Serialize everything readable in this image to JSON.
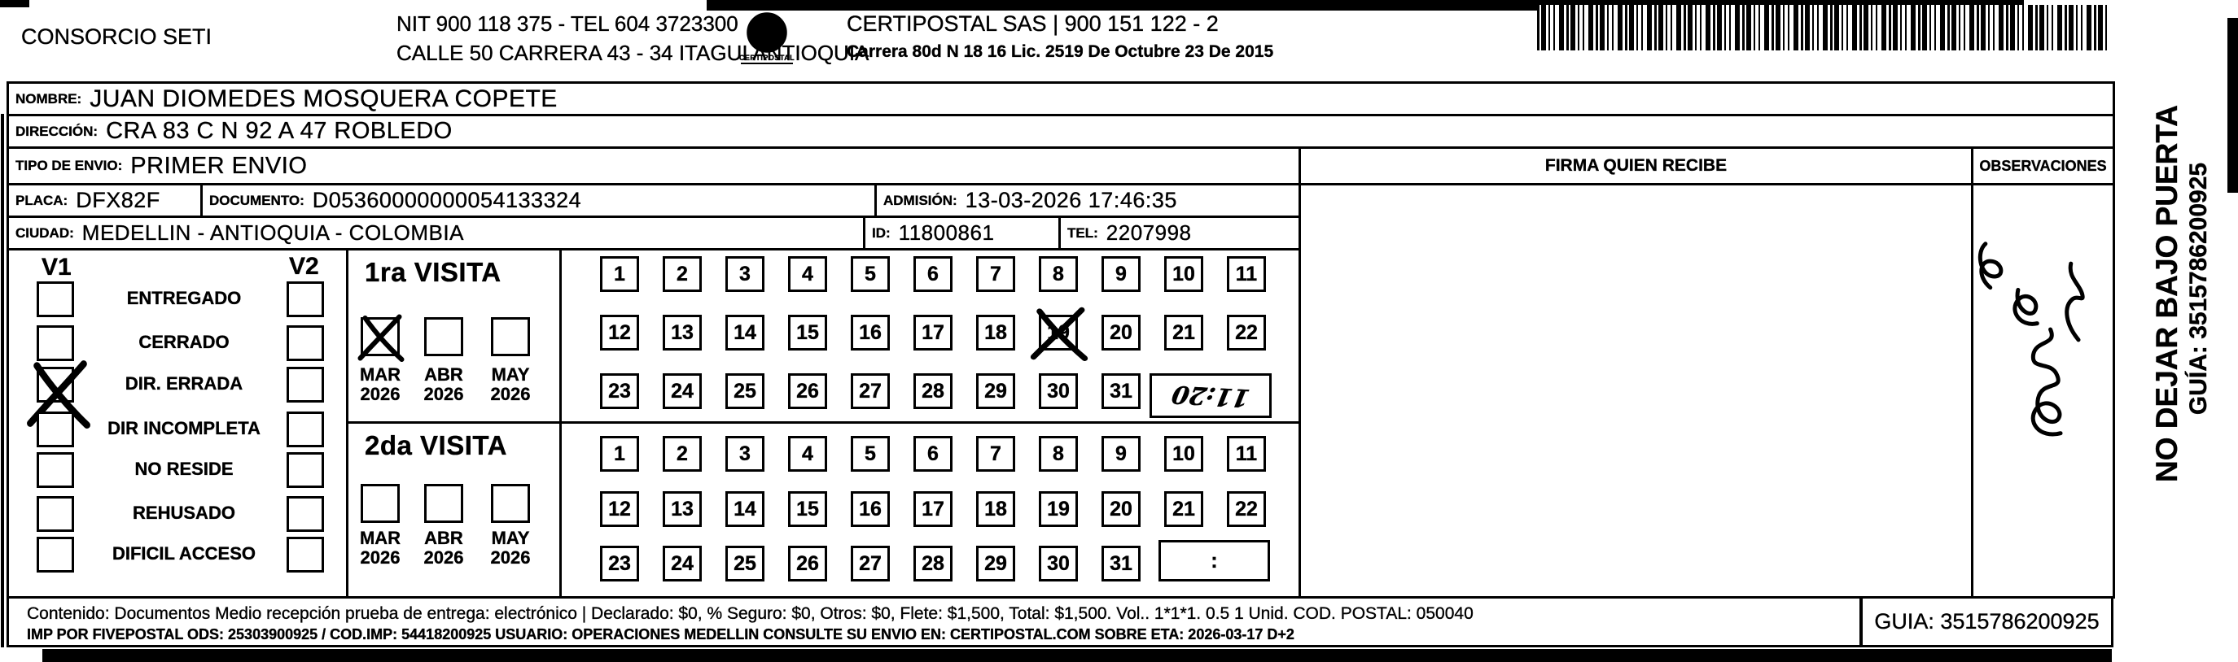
{
  "header": {
    "company": "CONSORCIO SETI",
    "nit_line": "NIT 900 118 375 - TEL 604 3723300",
    "address_line": "CALLE 50 CARRERA 43 - 34 ITAGUI ANTIOQUIA",
    "logo_text": "CERTIPOSTAL",
    "right_company": "CERTIPOSTAL SAS | 900 151 122 - 2",
    "right_address": "Carrera 80d N 18 16  Lic. 2519 De Octubre 23 De 2015"
  },
  "recipient": {
    "nombre_label": "NOMBRE:",
    "nombre": "JUAN DIOMEDES MOSQUERA COPETE",
    "direccion_label": "DIRECCIÓN:",
    "direccion": "CRA 83 C N 92 A 47 ROBLEDO",
    "tipo_label": "TIPO DE ENVIO:",
    "tipo": "PRIMER ENVIO",
    "placa_label": "PLACA:",
    "placa": "DFX82F",
    "documento_label": "DOCUMENTO:",
    "documento": "D05360000000054133324",
    "admision_label": "ADMISIÓN:",
    "admision": "13-03-2026 17:46:35",
    "ciudad_label": "CIUDAD:",
    "ciudad": "MEDELLIN - ANTIOQUIA - COLOMBIA",
    "id_label": "ID:",
    "id": "11800861",
    "tel_label": "TEL:",
    "tel": "2207998"
  },
  "table": {
    "firma_header": "FIRMA QUIEN RECIBE",
    "observaciones_header": "OBSERVACIONES"
  },
  "status": {
    "col1": "V1",
    "col2": "V2",
    "options": [
      {
        "label": "ENTREGADO",
        "v1": false,
        "v2": false
      },
      {
        "label": "CERRADO",
        "v1": false,
        "v2": false
      },
      {
        "label": "DIR. ERRADA",
        "v1": true,
        "v2": false
      },
      {
        "label": "DIR INCOMPLETA",
        "v1": false,
        "v2": false
      },
      {
        "label": "NO RESIDE",
        "v1": false,
        "v2": false
      },
      {
        "label": "REHUSADO",
        "v1": false,
        "v2": false
      },
      {
        "label": "DIFICIL ACCESO",
        "v1": false,
        "v2": false
      }
    ]
  },
  "visits": [
    {
      "title": "1ra VISITA",
      "months": [
        "MAR",
        "ABR",
        "MAY"
      ],
      "year": "2026",
      "checked_month_index": 0,
      "day_rows": [
        [
          "1",
          "2",
          "3",
          "4",
          "5",
          "6",
          "7",
          "8",
          "9",
          "10",
          "11"
        ],
        [
          "12",
          "13",
          "14",
          "15",
          "16",
          "17",
          "18",
          "19",
          "20",
          "21",
          "22"
        ],
        [
          "23",
          "24",
          "25",
          "26",
          "27",
          "28",
          "29",
          "30",
          "31"
        ]
      ],
      "crossed_day": "19",
      "time": "11:20"
    },
    {
      "title": "2da VISITA",
      "months": [
        "MAR",
        "ABR",
        "MAY"
      ],
      "year": "2026",
      "checked_month_index": null,
      "day_rows": [
        [
          "1",
          "2",
          "3",
          "4",
          "5",
          "6",
          "7",
          "8",
          "9",
          "10",
          "11"
        ],
        [
          "12",
          "13",
          "14",
          "15",
          "16",
          "17",
          "18",
          "19",
          "20",
          "21",
          "22"
        ],
        [
          "23",
          "24",
          "25",
          "26",
          "27",
          "28",
          "29",
          "30",
          "31"
        ]
      ],
      "crossed_day": null,
      "time": ":"
    }
  ],
  "side": {
    "line1": "NO DEJAR BAJO PUERTA",
    "line2": "GUÍA: 3515786200925"
  },
  "annotations": {
    "observaciones_note": "illegible handwritten scribble (rotated)",
    "visit1_time_handwritten": "11:20"
  },
  "footer": {
    "line1": "Contenido: Documentos Medio recepción prueba de entrega: electrónico | Declarado: $0, % Seguro: $0, Otros: $0, Flete: $1,500, Total: $1,500. Vol.. 1*1*1. 0.5 1 Unid. COD. POSTAL: 050040",
    "line2": "IMP POR FIVEPOSTAL ODS: 25303900925 / COD.IMP: 54418200925 USUARIO: OPERACIONES MEDELLIN CONSULTE SU ENVIO EN: CERTIPOSTAL.COM SOBRE ETA: 2026-03-17 D+2",
    "guia": "GUIA: 3515786200925"
  }
}
